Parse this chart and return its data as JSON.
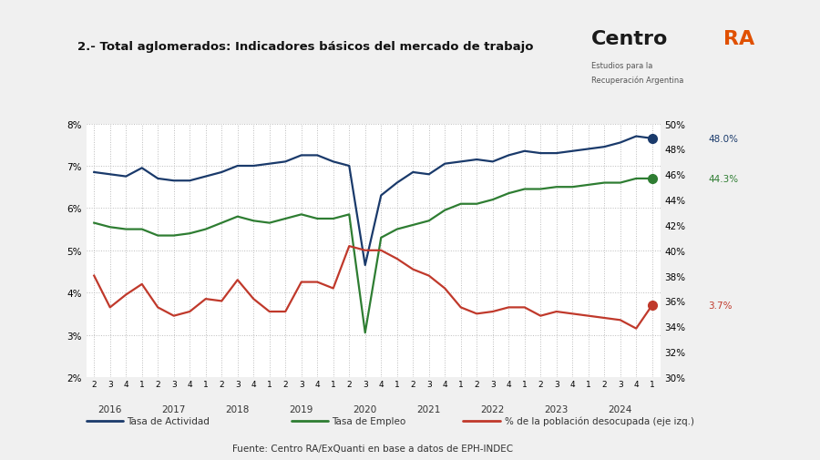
{
  "title": "2.- Total aglomerados: Indicadores básicos del mercado de trabajo",
  "source": "Fuente: Centro RA/ExQuanti en base a datos de EPH-INDEC",
  "legend": [
    "Tasa de Actividad",
    "Tasa de Empleo",
    "% de la población desocupada (eje izq.)"
  ],
  "colors": {
    "actividad": "#1a3a6b",
    "empleo": "#2e7d32",
    "desocupada": "#c0392b"
  },
  "x_labels": [
    "2",
    "3",
    "4",
    "1",
    "2",
    "3",
    "4",
    "1",
    "2",
    "3",
    "4",
    "1",
    "2",
    "3",
    "4",
    "1",
    "2",
    "3",
    "4",
    "1",
    "2",
    "3",
    "4",
    "1",
    "2",
    "3",
    "4",
    "1",
    "2",
    "3",
    "4",
    "1",
    "2",
    "3",
    "4",
    "1"
  ],
  "year_labels": [
    "2016",
    "2017",
    "2018",
    "2019",
    "2020",
    "2021",
    "2022",
    "2023",
    "2024"
  ],
  "year_positions": [
    1,
    5,
    9,
    13,
    17,
    21,
    25,
    29,
    33
  ],
  "ylim_left": [
    2,
    8
  ],
  "ylim_right": [
    30,
    50
  ],
  "yticks_left": [
    2,
    3,
    4,
    5,
    6,
    7,
    8
  ],
  "yticks_right": [
    30,
    32,
    34,
    36,
    38,
    40,
    42,
    44,
    46,
    48,
    50
  ],
  "tasa_actividad": [
    6.85,
    6.8,
    6.75,
    6.95,
    6.7,
    6.65,
    6.65,
    6.75,
    6.85,
    7.0,
    7.0,
    7.05,
    7.1,
    7.25,
    7.25,
    7.1,
    7.0,
    4.65,
    6.3,
    6.6,
    6.85,
    6.8,
    7.05,
    7.1,
    7.15,
    7.1,
    7.25,
    7.35,
    7.3,
    7.3,
    7.35,
    7.4,
    7.45,
    7.55,
    7.7,
    7.65
  ],
  "tasa_empleo": [
    5.65,
    5.55,
    5.5,
    5.5,
    5.35,
    5.35,
    5.4,
    5.5,
    5.65,
    5.8,
    5.7,
    5.65,
    5.75,
    5.85,
    5.75,
    5.75,
    5.85,
    3.05,
    5.3,
    5.5,
    5.6,
    5.7,
    5.95,
    6.1,
    6.1,
    6.2,
    6.35,
    6.45,
    6.45,
    6.5,
    6.5,
    6.55,
    6.6,
    6.6,
    6.7,
    6.7
  ],
  "desocupada": [
    4.4,
    3.65,
    3.95,
    4.2,
    3.65,
    3.45,
    3.55,
    3.85,
    3.8,
    4.3,
    3.85,
    3.55,
    3.55,
    4.25,
    4.25,
    4.1,
    5.1,
    5.0,
    5.0,
    4.8,
    4.55,
    4.4,
    4.1,
    3.65,
    3.5,
    3.55,
    3.65,
    3.65,
    3.45,
    3.55,
    3.5,
    3.45,
    3.4,
    3.35,
    3.15,
    3.7
  ],
  "bg_color": "#f0f0f0",
  "plot_bg": "#ffffff",
  "annot_actividad": "48.0%",
  "annot_empleo": "44.3%",
  "annot_desocupada": "3.7%",
  "annot_actividad_val": 7.65,
  "annot_empleo_val": 6.7,
  "annot_desocupada_val": 3.7
}
